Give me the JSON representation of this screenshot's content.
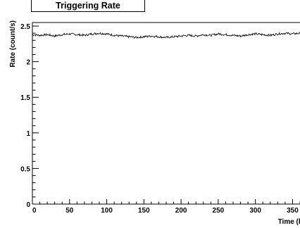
{
  "chart_data": {
    "type": "line",
    "title": "Triggering Rate",
    "xlabel": "Time (h",
    "ylabel": "Rate (count/s)",
    "xlim": [
      0,
      360
    ],
    "ylim": [
      0,
      2.55
    ],
    "x_ticks": [
      "0",
      "50",
      "100",
      "150",
      "200",
      "250",
      "300",
      "350"
    ],
    "y_ticks": [
      "0",
      "0.5",
      "1",
      "1.5",
      "2",
      "2.5"
    ],
    "grid": false,
    "series": [
      {
        "color": "#000000",
        "x": [
          0,
          10,
          20,
          30,
          40,
          50,
          60,
          70,
          80,
          90,
          100,
          110,
          120,
          130,
          140,
          150,
          160,
          170,
          180,
          190,
          200,
          210,
          220,
          230,
          240,
          250,
          260,
          270,
          280,
          290,
          300,
          310,
          320,
          330,
          340,
          350,
          360
        ],
        "y": [
          2.38,
          2.37,
          2.38,
          2.36,
          2.38,
          2.39,
          2.38,
          2.37,
          2.39,
          2.4,
          2.39,
          2.37,
          2.36,
          2.35,
          2.34,
          2.35,
          2.36,
          2.35,
          2.34,
          2.35,
          2.36,
          2.37,
          2.36,
          2.38,
          2.37,
          2.39,
          2.38,
          2.37,
          2.36,
          2.38,
          2.39,
          2.38,
          2.37,
          2.39,
          2.4,
          2.39,
          2.4
        ]
      }
    ]
  }
}
